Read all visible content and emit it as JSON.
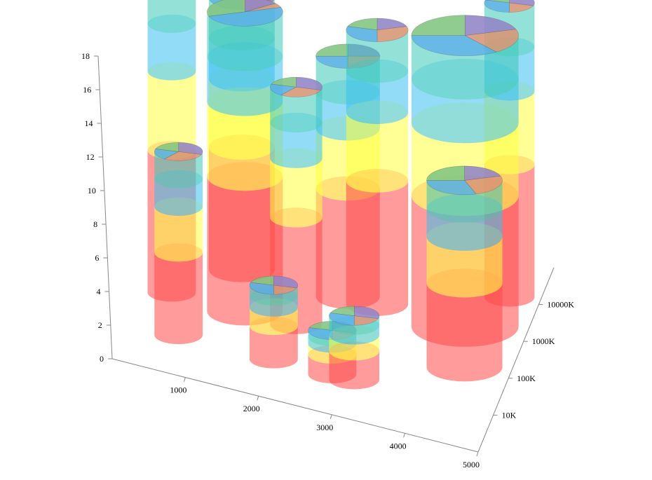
{
  "chart_data": {
    "type": "3d-stacked-cylinder-bubble",
    "title": "",
    "xlabel": "",
    "ylabel": "",
    "zlabel": "",
    "y_ticks": [
      "0",
      "2",
      "4",
      "6",
      "8",
      "10",
      "12",
      "14",
      "16",
      "18"
    ],
    "x_ticks": [
      "1000",
      "2000",
      "3000",
      "4000",
      "5000"
    ],
    "z_ticks": [
      "10K",
      "100K",
      "1000K",
      "10000K"
    ],
    "ylim": [
      0,
      18
    ],
    "xlim": [
      0,
      5000
    ],
    "z_scale": "log",
    "zlim": [
      "1K",
      "100000K"
    ],
    "segment_colors": [
      "#ff5050",
      "#ffff50",
      "#40b8e8",
      "#40b8e8",
      "#ff9040",
      "#8080ff"
    ],
    "segment_order": [
      "red",
      "yellow",
      "cyan",
      "teal",
      "orange",
      "violet"
    ],
    "cylinders": [
      {
        "x": 400,
        "z": "100K",
        "top": 18.8,
        "pie": [
          0.35,
          0.2,
          0.2,
          0.25
        ],
        "size": 0.3
      },
      {
        "x": 1400,
        "z": "100K",
        "top": 17.8,
        "pie": [
          0.15,
          0.05,
          0.5,
          0.3
        ],
        "size": 1.0
      },
      {
        "x": 1150,
        "z": "1000K",
        "top": 16.2,
        "pie": [
          0.3,
          0.2,
          0.3,
          0.2
        ],
        "size": 0.75
      },
      {
        "x": 2100,
        "z": "100K",
        "top": 14.1,
        "pie": [
          0.3,
          0.3,
          0.2,
          0.2
        ],
        "size": 0.4
      },
      {
        "x": 2600,
        "z": "1000K",
        "top": 14.3,
        "pie": [
          0.25,
          0.25,
          0.25,
          0.25
        ],
        "size": 0.7
      },
      {
        "x": 3000,
        "z": "1000K",
        "top": 16.3,
        "pie": [
          0.2,
          0.3,
          0.3,
          0.2
        ],
        "size": 0.65
      },
      {
        "x": 4200,
        "z": "1000K",
        "top": 17.3,
        "pie": [
          0.2,
          0.2,
          0.35,
          0.25
        ],
        "size": 1.8
      },
      {
        "x": 4600,
        "z": "10000K",
        "top": 17.5,
        "pie": [
          0.3,
          0.2,
          0.3,
          0.2
        ],
        "size": 0.35
      },
      {
        "x": 700,
        "z": "10K",
        "top": 10.9,
        "pie": [
          0.3,
          0.3,
          0.2,
          0.2
        ],
        "size": 0.3
      },
      {
        "x": 2000,
        "z": "10K",
        "top": 4.4,
        "pie": [
          0.3,
          0.2,
          0.3,
          0.2
        ],
        "size": 0.3
      },
      {
        "x": 2800,
        "z": "10K",
        "top": 2.6,
        "pie": [
          0.3,
          0.2,
          0.3,
          0.2
        ],
        "size": 0.3
      },
      {
        "x": 3100,
        "z": "10K",
        "top": 3.8,
        "pie": [
          0.3,
          0.2,
          0.3,
          0.2
        ],
        "size": 0.35
      },
      {
        "x": 4400,
        "z": "100K",
        "top": 11.1,
        "pie": [
          0.2,
          0.25,
          0.3,
          0.25
        ],
        "size": 1.0
      }
    ],
    "grid": false,
    "legend": "none"
  }
}
